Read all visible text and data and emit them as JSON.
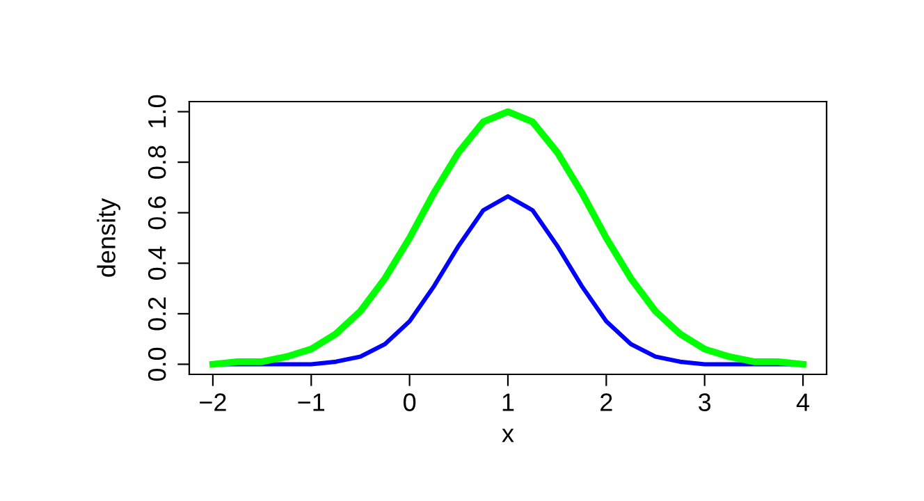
{
  "chart_data": {
    "type": "line",
    "xlabel": "x",
    "ylabel": "density",
    "x": [
      -2,
      -1.75,
      -1.5,
      -1.25,
      -1,
      -0.75,
      -0.5,
      -0.25,
      0,
      0.25,
      0.5,
      0.75,
      1,
      1.25,
      1.5,
      1.75,
      2,
      2.25,
      2.5,
      2.75,
      3,
      3.25,
      3.5,
      3.75,
      4
    ],
    "series": [
      {
        "color": "#0000ff",
        "values": [
          0,
          0,
          0,
          0,
          0,
          0.01,
          0.03,
          0.08,
          0.17,
          0.31,
          0.47,
          0.61,
          0.665,
          0.61,
          0.47,
          0.31,
          0.17,
          0.08,
          0.03,
          0.01,
          0,
          0,
          0,
          0,
          0
        ]
      },
      {
        "color": "#00ff00",
        "values": [
          0,
          0.01,
          0.01,
          0.03,
          0.06,
          0.12,
          0.21,
          0.34,
          0.5,
          0.68,
          0.84,
          0.96,
          1,
          0.96,
          0.84,
          0.68,
          0.5,
          0.34,
          0.21,
          0.12,
          0.06,
          0.03,
          0.01,
          0.01,
          0
        ]
      }
    ],
    "xlim": [
      -2.24,
      4.24
    ],
    "ylim": [
      -0.04,
      1.04
    ],
    "xticks": [
      {
        "value": -2,
        "label": "−2"
      },
      {
        "value": -1,
        "label": "−1"
      },
      0,
      1,
      2,
      3,
      4
    ],
    "yticks": [
      {
        "value": 0,
        "label": "0.0"
      },
      0.2,
      0.4,
      0.6,
      0.8,
      {
        "value": 1,
        "label": "1.0"
      }
    ],
    "grid": false,
    "legend": false,
    "marker": "none",
    "line_style": "solid"
  }
}
